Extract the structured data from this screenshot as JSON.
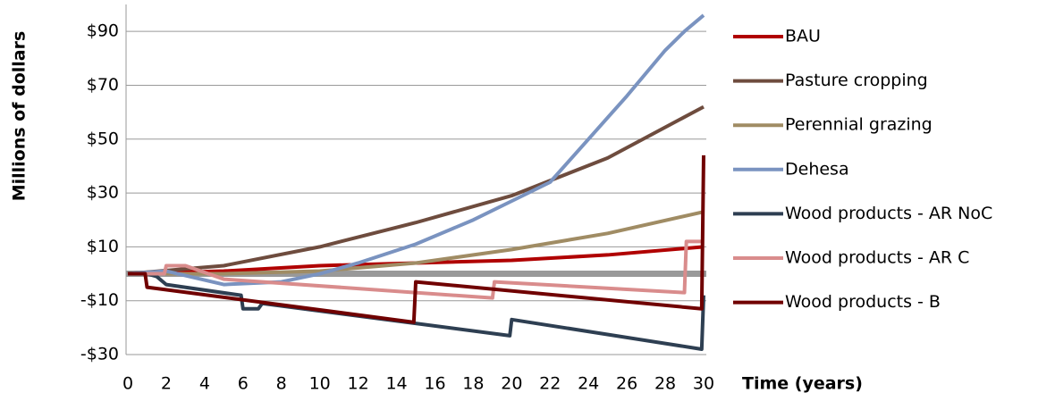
{
  "chart_data": {
    "type": "line",
    "y_label": "Millions of dollars",
    "x_label": "Time (years)",
    "xlim": [
      0,
      30
    ],
    "xticks": [
      0,
      2,
      4,
      6,
      8,
      10,
      12,
      14,
      16,
      18,
      20,
      22,
      24,
      26,
      28,
      30
    ],
    "ylim": [
      -30,
      100
    ],
    "yticks": [
      {
        "value": -30,
        "label": "-$30"
      },
      {
        "value": -10,
        "label": "-$10"
      },
      {
        "value": 10,
        "label": "$10"
      },
      {
        "value": 30,
        "label": "$30"
      },
      {
        "value": 50,
        "label": "$50"
      },
      {
        "value": 70,
        "label": "$70"
      },
      {
        "value": 90,
        "label": "$90"
      }
    ],
    "grid": true,
    "legend": "right",
    "series": [
      {
        "name": "BAU",
        "color": "#b00000",
        "x": [
          0,
          5,
          10,
          15,
          20,
          25,
          30
        ],
        "values": [
          0,
          1,
          3,
          4,
          5,
          7,
          10
        ]
      },
      {
        "name": "Pasture cropping",
        "color": "#6e4c3e",
        "x": [
          0,
          5,
          10,
          15,
          20,
          25,
          30
        ],
        "values": [
          0,
          3,
          10,
          19,
          29,
          43,
          62
        ]
      },
      {
        "name": "Perennial grazing",
        "color": "#a08c64",
        "x": [
          0,
          5,
          10,
          15,
          20,
          25,
          30
        ],
        "values": [
          0,
          0,
          1,
          4,
          9,
          15,
          23
        ]
      },
      {
        "name": "Dehesa",
        "color": "#7a93c0",
        "x": [
          0,
          2,
          5,
          8,
          10,
          12,
          15,
          18,
          20,
          22,
          24,
          26,
          28,
          29,
          30
        ],
        "values": [
          0,
          1,
          -4,
          -3,
          0,
          4,
          11,
          20,
          27,
          34,
          50,
          66,
          83,
          90,
          96
        ]
      },
      {
        "name": "Wood products - AR NoC",
        "color": "#2e3f52",
        "x": [
          0,
          1,
          1.5,
          2,
          5.9,
          6,
          6.8,
          7,
          19.9,
          20,
          29.9,
          30
        ],
        "values": [
          0,
          0,
          -1,
          -4,
          -8,
          -13,
          -13,
          -11,
          -23,
          -17,
          -28,
          -8
        ]
      },
      {
        "name": "Wood products - AR C",
        "color": "#d98c8c",
        "x": [
          0,
          1.9,
          2,
          3,
          5,
          19,
          19.1,
          29,
          29.1,
          30
        ],
        "values": [
          0,
          0,
          3,
          3,
          -2,
          -9,
          -3,
          -7,
          12,
          12
        ]
      },
      {
        "name": "Wood products - B",
        "color": "#700000",
        "x": [
          0,
          0.9,
          1,
          14.9,
          15,
          29.9,
          30
        ],
        "values": [
          0,
          0,
          -5,
          -18,
          -3,
          -13,
          44
        ]
      }
    ]
  }
}
